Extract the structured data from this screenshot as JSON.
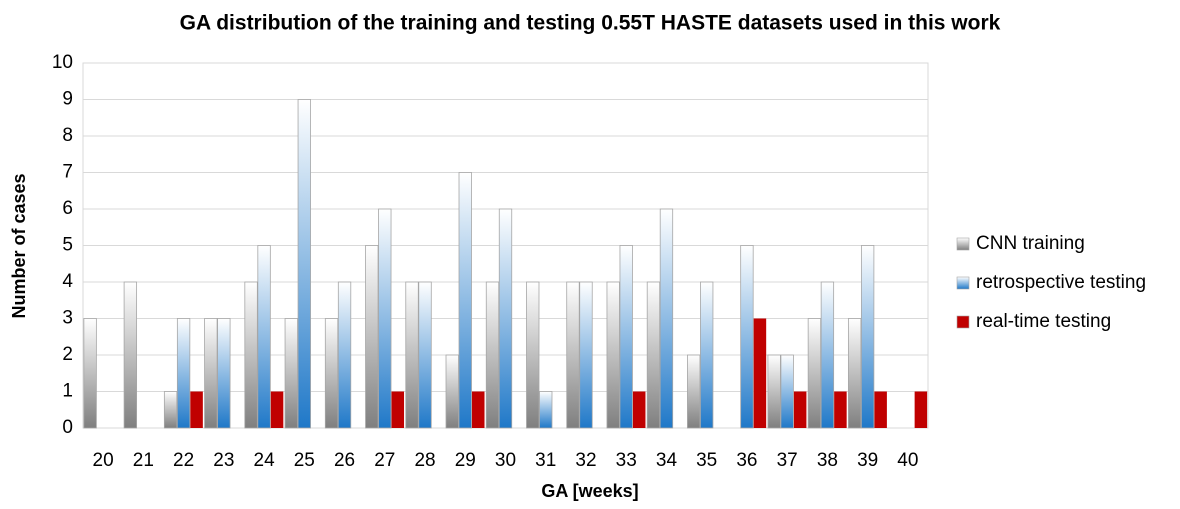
{
  "chart_data": {
    "type": "bar",
    "title": "GA distribution of the training and testing 0.55T HASTE datasets used in this work",
    "x_label": "GA [weeks]",
    "y_label": "Number of cases",
    "categories": [
      "20",
      "21",
      "22",
      "23",
      "24",
      "25",
      "26",
      "27",
      "28",
      "29",
      "30",
      "31",
      "32",
      "33",
      "34",
      "35",
      "36",
      "37",
      "38",
      "39",
      "40"
    ],
    "series": [
      {
        "name": "CNN training",
        "color": "#7f7f7f",
        "values": [
          3,
          4,
          1,
          3,
          4,
          3,
          3,
          5,
          4,
          2,
          4,
          4,
          4,
          4,
          4,
          2,
          0,
          2,
          3,
          3,
          0
        ]
      },
      {
        "name": "retrospective testing",
        "color": "#1f78c8",
        "values": [
          0,
          0,
          3,
          3,
          5,
          9,
          4,
          6,
          4,
          7,
          6,
          1,
          4,
          5,
          6,
          4,
          5,
          2,
          4,
          5,
          0
        ]
      },
      {
        "name": "real-time testing",
        "color": "#c00000",
        "values": [
          0,
          0,
          1,
          0,
          1,
          0,
          0,
          1,
          0,
          1,
          0,
          0,
          0,
          1,
          0,
          0,
          3,
          1,
          1,
          1,
          1
        ]
      }
    ],
    "ylim": [
      0,
      10
    ],
    "yticks": [
      0,
      1,
      2,
      3,
      4,
      5,
      6,
      7,
      8,
      9,
      10
    ],
    "grid": true,
    "legend": "right"
  }
}
